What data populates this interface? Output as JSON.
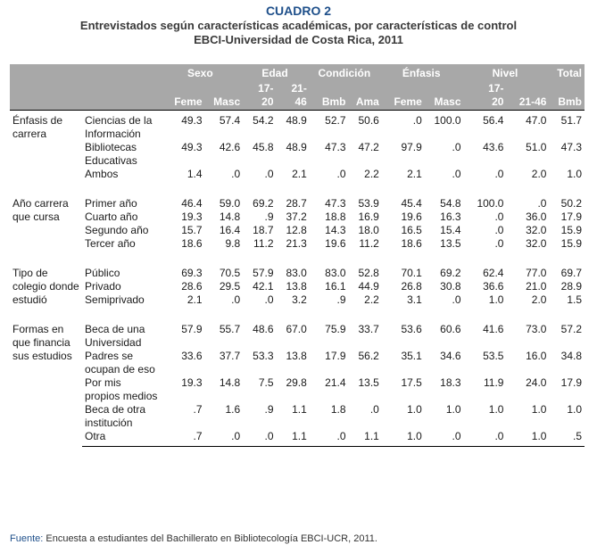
{
  "title": "CUADRO 2",
  "subtitle_line1": "Entrevistados según características académicas, por características de control",
  "subtitle_line2": "EBCI-Universidad de Costa Rica, 2011",
  "header": {
    "groups": [
      "Sexo",
      "Edad",
      "Condición",
      "Énfasis",
      "Nivel",
      "Total"
    ],
    "subheaders": [
      "Feme",
      "Masc",
      "17-\n20",
      "21-\n46",
      "Bmb",
      "Ama",
      "Feme",
      "Masc",
      "17-\n20",
      "21-46",
      "Bmb"
    ]
  },
  "sections": [
    {
      "label": "Énfasis de carrera",
      "rows": [
        {
          "category": "Ciencias de la Información",
          "values": [
            "49.3",
            "57.4",
            "54.2",
            "48.9",
            "52.7",
            "50.6",
            ".0",
            "100.0",
            "56.4",
            "47.0",
            "51.7"
          ]
        },
        {
          "category": "Bibliotecas Educativas",
          "values": [
            "49.3",
            "42.6",
            "45.8",
            "48.9",
            "47.3",
            "47.2",
            "97.9",
            ".0",
            "43.6",
            "51.0",
            "47.3"
          ]
        },
        {
          "category": "Ambos",
          "values": [
            "1.4",
            ".0",
            ".0",
            "2.1",
            ".0",
            "2.2",
            "2.1",
            ".0",
            ".0",
            "2.0",
            "1.0"
          ]
        }
      ]
    },
    {
      "label": "Año carrera que cursa",
      "rows": [
        {
          "category": "Primer año",
          "values": [
            "46.4",
            "59.0",
            "69.2",
            "28.7",
            "47.3",
            "53.9",
            "45.4",
            "54.8",
            "100.0",
            ".0",
            "50.2"
          ]
        },
        {
          "category": "Cuarto año",
          "values": [
            "19.3",
            "14.8",
            ".9",
            "37.2",
            "18.8",
            "16.9",
            "19.6",
            "16.3",
            ".0",
            "36.0",
            "17.9"
          ]
        },
        {
          "category": "Segundo año",
          "values": [
            "15.7",
            "16.4",
            "18.7",
            "12.8",
            "14.3",
            "18.0",
            "16.5",
            "15.4",
            ".0",
            "32.0",
            "15.9"
          ]
        },
        {
          "category": "Tercer año",
          "values": [
            "18.6",
            "9.8",
            "11.2",
            "21.3",
            "19.6",
            "11.2",
            "18.6",
            "13.5",
            ".0",
            "32.0",
            "15.9"
          ]
        }
      ]
    },
    {
      "label": "Tipo de colegio donde estudió",
      "rows": [
        {
          "category": "Público",
          "values": [
            "69.3",
            "70.5",
            "57.9",
            "83.0",
            "83.0",
            "52.8",
            "70.1",
            "69.2",
            "62.4",
            "77.0",
            "69.7"
          ]
        },
        {
          "category": "Privado",
          "values": [
            "28.6",
            "29.5",
            "42.1",
            "13.8",
            "16.1",
            "44.9",
            "26.8",
            "30.8",
            "36.6",
            "21.0",
            "28.9"
          ]
        },
        {
          "category": "Semiprivado",
          "values": [
            "2.1",
            ".0",
            ".0",
            "3.2",
            ".9",
            "2.2",
            "3.1",
            ".0",
            "1.0",
            "2.0",
            "1.5"
          ]
        }
      ]
    },
    {
      "label": "Formas en que financia sus estudios",
      "rows": [
        {
          "category": "Beca de una Universidad",
          "values": [
            "57.9",
            "55.7",
            "48.6",
            "67.0",
            "75.9",
            "33.7",
            "53.6",
            "60.6",
            "41.6",
            "73.0",
            "57.2"
          ]
        },
        {
          "category": "Padres se ocupan de eso",
          "values": [
            "33.6",
            "37.7",
            "53.3",
            "13.8",
            "17.9",
            "56.2",
            "35.1",
            "34.6",
            "53.5",
            "16.0",
            "34.8"
          ]
        },
        {
          "category": "Por mis propios medios",
          "values": [
            "19.3",
            "14.8",
            "7.5",
            "29.8",
            "21.4",
            "13.5",
            "17.5",
            "18.3",
            "11.9",
            "24.0",
            "17.9"
          ]
        },
        {
          "category": "Beca de otra institución",
          "values": [
            ".7",
            "1.6",
            ".9",
            "1.1",
            "1.8",
            ".0",
            "1.0",
            "1.0",
            "1.0",
            "1.0",
            "1.0"
          ]
        },
        {
          "category": "Otra",
          "values": [
            ".7",
            ".0",
            ".0",
            "1.1",
            ".0",
            "1.1",
            "1.0",
            ".0",
            ".0",
            "1.0",
            ".5"
          ]
        }
      ]
    }
  ],
  "source_label": "Fuente:",
  "source_text": " Encuesta a estudiantes del Bachillerato en Bibliotecología EBCI-UCR, 2011."
}
